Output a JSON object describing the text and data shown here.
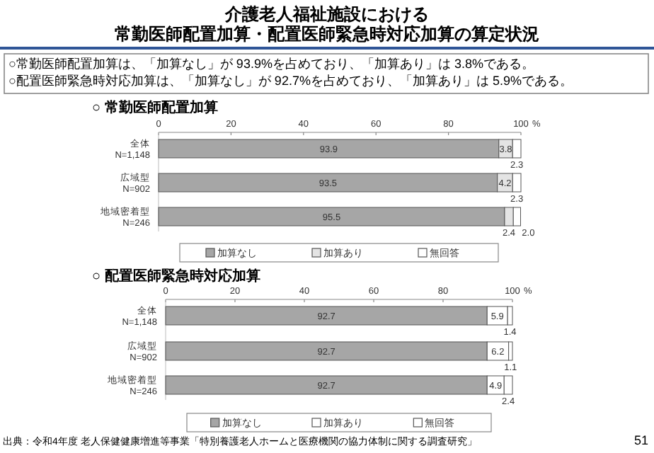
{
  "chart_data": [
    {
      "type": "other",
      "title": "介護老人福祉施設における",
      "subtitle": "常勤医師配置加算・配置医師緊急時対応加算の算定状況",
      "annotations": [
        "○常勤医師配置加算は、「加算なし」が 93.9%を占めており、「加算あり」は 3.8%である。",
        "○配置医師緊急時対応加算は、「加算なし」が 92.7%を占めており、「加算あり」は 5.9%である。"
      ]
    },
    {
      "type": "bar",
      "orientation": "horizontal",
      "stacked": true,
      "title": "○ 常勤医師配置加算",
      "categories": [
        "全体\nN=1,148",
        "広域型\nN=902",
        "地域密着型\nN=246"
      ],
      "series": [
        {
          "name": "加算なし",
          "color": "#a6a6a6",
          "values": [
            93.9,
            93.5,
            95.5
          ],
          "value_labels": [
            "93.9",
            "93.5",
            "95.5"
          ]
        },
        {
          "name": "加算あり",
          "color": "#e4e4e4",
          "values": [
            3.8,
            4.2,
            2.4
          ],
          "value_labels": [
            "3.8",
            "4.2",
            "2.4"
          ]
        },
        {
          "name": "無回答",
          "color": "#ffffff",
          "values": [
            2.3,
            2.3,
            2.0
          ],
          "value_labels": [
            "2.3",
            "2.3",
            "2.0"
          ]
        }
      ],
      "xlim": [
        0,
        100
      ],
      "xticks": [
        0,
        20,
        40,
        60,
        80,
        100
      ],
      "xlabel": "%",
      "legend": "bottom"
    },
    {
      "type": "bar",
      "orientation": "horizontal",
      "stacked": true,
      "title": "○ 配置医師緊急時対応加算",
      "categories": [
        "全体\nN=1,148",
        "広域型\nN=902",
        "地域密着型\nN=246"
      ],
      "series": [
        {
          "name": "加算なし",
          "color": "#a6a6a6",
          "values": [
            92.7,
            92.7,
            92.7
          ],
          "value_labels": [
            "92.7",
            "92.7",
            "92.7"
          ]
        },
        {
          "name": "加算あり",
          "color": "#ffffff",
          "values": [
            5.9,
            6.2,
            4.9
          ],
          "value_labels": [
            "5.9",
            "6.2",
            "4.9"
          ]
        },
        {
          "name": "無回答",
          "color": "#ffffff",
          "values": [
            1.4,
            1.1,
            2.4
          ],
          "value_labels": [
            "1.4",
            "1.1",
            "2.4"
          ]
        }
      ],
      "xlim": [
        0,
        100
      ],
      "xticks": [
        0,
        20,
        40,
        60,
        80,
        100
      ],
      "xlabel": "%",
      "legend": "bottom",
      "annotations": [
        "出典：令和4年度 老人保健健康増進等事業「特別養護老人ホームと医療機関の協力体制に関する調査研究」",
        "51"
      ]
    }
  ]
}
